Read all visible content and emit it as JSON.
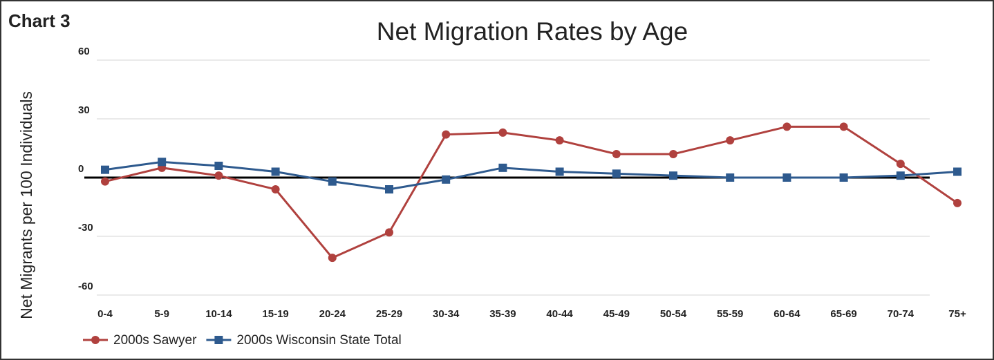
{
  "chart_data": {
    "type": "line",
    "label": "Chart 3",
    "title": "Net Migration Rates by Age",
    "y_label": "Net Migrants per 100 Individuals",
    "categories": [
      "0-4",
      "5-9",
      "10-14",
      "15-19",
      "20-24",
      "25-29",
      "30-34",
      "35-39",
      "40-44",
      "45-49",
      "50-54",
      "55-59",
      "60-64",
      "65-69",
      "70-74",
      "75+"
    ],
    "series": [
      {
        "name": "2000s Sawyer",
        "color": "#b0413e",
        "marker": "circle",
        "values": [
          -2,
          5,
          1,
          -6,
          -41,
          -28,
          22,
          23,
          19,
          12,
          12,
          19,
          26,
          26,
          7,
          -13
        ]
      },
      {
        "name": "2000s Wisconsin State Total",
        "color": "#2e5a8e",
        "marker": "square",
        "values": [
          4,
          8,
          6,
          3,
          -2,
          -6,
          -1,
          5,
          3,
          2,
          1,
          0,
          0,
          0,
          1,
          3
        ]
      }
    ],
    "ylim": [
      -60,
      60
    ],
    "yticks": [
      -60,
      -30,
      0,
      30,
      60
    ],
    "grid": true,
    "legend": "bottom-left"
  }
}
